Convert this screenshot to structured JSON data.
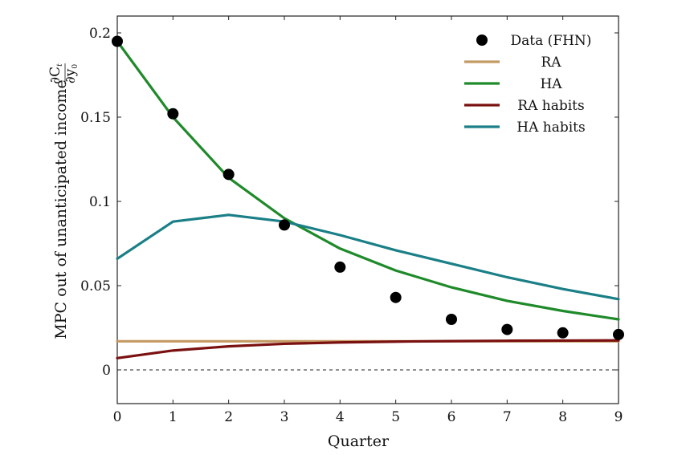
{
  "chart_data": {
    "type": "line",
    "xlabel": "Quarter",
    "ylabel_text": "MPC out of unanticipated income",
    "ylabel_fraction": {
      "numerator": "∂C",
      "numerator_sub": "t",
      "denominator": "∂y",
      "denominator_sub": "0"
    },
    "xlim": [
      0,
      9
    ],
    "ylim": [
      -0.02,
      0.21
    ],
    "x_ticks": [
      0,
      1,
      2,
      3,
      4,
      5,
      6,
      7,
      8,
      9
    ],
    "x_tick_labels": [
      "0",
      "1",
      "2",
      "3",
      "4",
      "5",
      "6",
      "7",
      "8",
      "9"
    ],
    "y_ticks": [
      0,
      0.05,
      0.1,
      0.15,
      0.2
    ],
    "y_tick_labels": [
      "0",
      "0.05",
      "0.1",
      "0.15",
      "0.2"
    ],
    "zero_line": {
      "y": 0,
      "style": "dashed"
    },
    "grid": false,
    "legend_position": "top-right",
    "x": [
      0,
      1,
      2,
      3,
      4,
      5,
      6,
      7,
      8,
      9
    ],
    "scatter": {
      "name": "Data (FHN)",
      "color": "#000000",
      "values": [
        0.195,
        0.152,
        0.116,
        0.086,
        0.061,
        0.043,
        0.03,
        0.024,
        0.022,
        0.021
      ]
    },
    "series": [
      {
        "name": "RA",
        "color": "#c49a63",
        "values": [
          0.017,
          0.017,
          0.017,
          0.017,
          0.017,
          0.017,
          0.017,
          0.017,
          0.017,
          0.017
        ]
      },
      {
        "name": "HA",
        "color": "#1f8a2a",
        "values": [
          0.195,
          0.15,
          0.114,
          0.09,
          0.072,
          0.059,
          0.049,
          0.041,
          0.035,
          0.03
        ]
      },
      {
        "name": "RA habits",
        "color": "#7a1010",
        "values": [
          0.007,
          0.0115,
          0.014,
          0.0155,
          0.0163,
          0.0168,
          0.0171,
          0.0173,
          0.0174,
          0.0175
        ]
      },
      {
        "name": "HA habits",
        "color": "#1a7f86",
        "values": [
          0.066,
          0.088,
          0.092,
          0.088,
          0.08,
          0.071,
          0.063,
          0.055,
          0.048,
          0.042
        ]
      }
    ]
  }
}
